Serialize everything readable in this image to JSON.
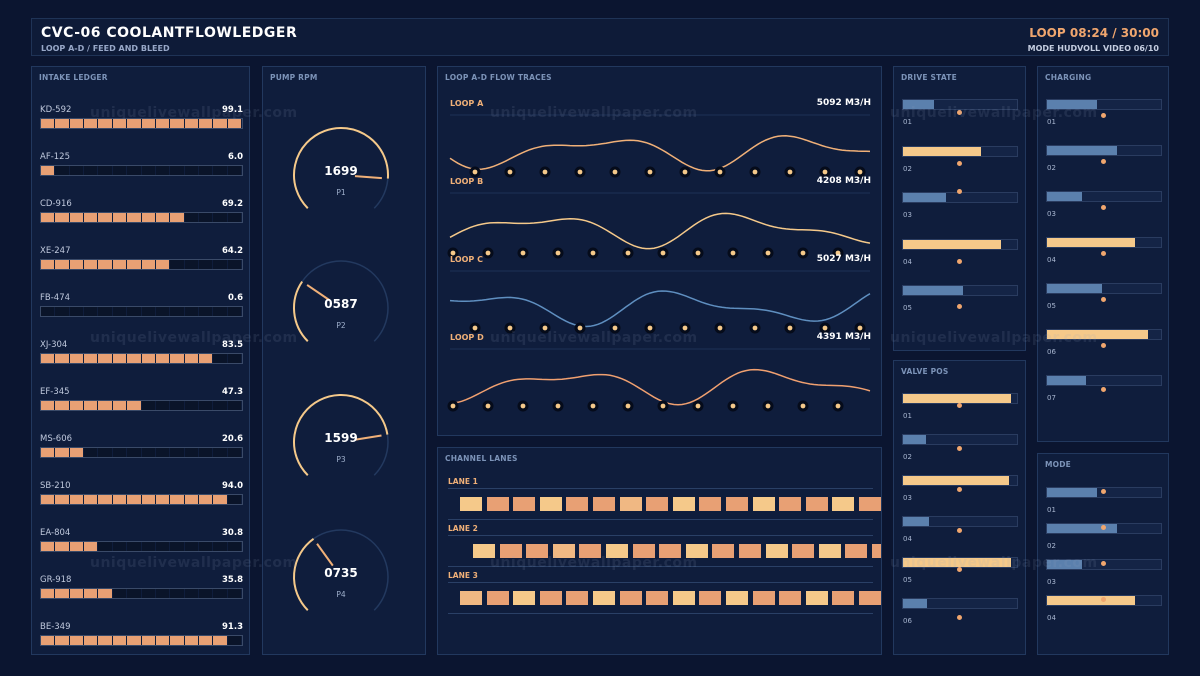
{
  "header": {
    "title": "CVC-06  COOLANTFLOWLEDGER",
    "subtitle": "LOOP A-D / FEED AND BLEED",
    "clock": "LOOP 08:24 / 30:00",
    "mode": "MODE HUDVOLL  VIDEO 06/10"
  },
  "intake": {
    "title": "INTAKE LEDGER",
    "rows": [
      {
        "id": "KD-592",
        "value": "99.1"
      },
      {
        "id": "AF-125",
        "value": "6.0"
      },
      {
        "id": "CD-916",
        "value": "69.2"
      },
      {
        "id": "XE-247",
        "value": "64.2"
      },
      {
        "id": "FB-474",
        "value": "0.6"
      },
      {
        "id": "XJ-304",
        "value": "83.5"
      },
      {
        "id": "EF-345",
        "value": "47.3"
      },
      {
        "id": "MS-606",
        "value": "20.6"
      },
      {
        "id": "SB-210",
        "value": "94.0"
      },
      {
        "id": "EA-804",
        "value": "30.8"
      },
      {
        "id": "GR-918",
        "value": "35.8"
      },
      {
        "id": "BE-349",
        "value": "91.3"
      }
    ]
  },
  "pumps": {
    "title": "PUMP RPM",
    "gauges": [
      {
        "label": "P1",
        "value": "1699"
      },
      {
        "label": "P2",
        "value": "0587"
      },
      {
        "label": "P3",
        "value": "1599"
      },
      {
        "label": "P4",
        "value": "0735"
      }
    ]
  },
  "traces": {
    "title": "LOOP A-D FLOW TRACES",
    "items": [
      {
        "label": "LOOP A",
        "value": "5092 M3/H",
        "color": "#f0b078"
      },
      {
        "label": "LOOP B",
        "value": "4208 M3/H",
        "color": "#f5c98a"
      },
      {
        "label": "LOOP C",
        "value": "5027 M3/H",
        "color": "#5f8fc0"
      },
      {
        "label": "LOOP D",
        "value": "4391 M3/H",
        "color": "#f0a070"
      }
    ]
  },
  "lanes": {
    "title": "CHANNEL LANES",
    "items": [
      {
        "label": "LANE 1"
      },
      {
        "label": "LANE 2"
      },
      {
        "label": "LANE 3"
      }
    ]
  },
  "drive": {
    "title": "DRIVE STATE",
    "rows": [
      {
        "num": "01",
        "level": 0.27,
        "color": "#5b80ad"
      },
      {
        "num": "02",
        "level": 0.68,
        "color": "#f5c98a"
      },
      {
        "num": "03",
        "level": 0.38,
        "color": "#5b80ad"
      },
      {
        "num": "04",
        "level": 0.86,
        "color": "#f5c98a"
      },
      {
        "num": "05",
        "level": 0.53,
        "color": "#5b80ad"
      }
    ]
  },
  "valve": {
    "title": "VALVE POS",
    "rows": [
      {
        "num": "01",
        "level": 0.95,
        "color": "#f5c98a"
      },
      {
        "num": "02",
        "level": 0.2,
        "color": "#5b80ad"
      },
      {
        "num": "03",
        "level": 0.93,
        "color": "#f5c98a"
      },
      {
        "num": "04",
        "level": 0.23,
        "color": "#5b80ad"
      },
      {
        "num": "05",
        "level": 0.95,
        "color": "#f5c98a"
      },
      {
        "num": "06",
        "level": 0.21,
        "color": "#5b80ad"
      }
    ]
  },
  "charging": {
    "title": "CHARGING",
    "rows": [
      {
        "num": "01",
        "level": 0.44,
        "color": "#5b80ad"
      },
      {
        "num": "02",
        "level": 0.61,
        "color": "#5b80ad"
      },
      {
        "num": "03",
        "level": 0.31,
        "color": "#5b80ad"
      },
      {
        "num": "04",
        "level": 0.77,
        "color": "#f5c98a"
      },
      {
        "num": "05",
        "level": 0.48,
        "color": "#5b80ad"
      },
      {
        "num": "06",
        "level": 0.89,
        "color": "#f5c98a"
      },
      {
        "num": "07",
        "level": 0.34,
        "color": "#5b80ad"
      }
    ]
  },
  "mode": {
    "title": "MODE",
    "rows": [
      {
        "num": "01",
        "level": 0.44,
        "color": "#5b80ad"
      },
      {
        "num": "02",
        "level": 0.61,
        "color": "#5b80ad"
      },
      {
        "num": "03",
        "level": 0.31,
        "color": "#5b80ad"
      },
      {
        "num": "04",
        "level": 0.77,
        "color": "#f5c98a"
      }
    ]
  },
  "watermark": "uniquelivewallpaper.com"
}
